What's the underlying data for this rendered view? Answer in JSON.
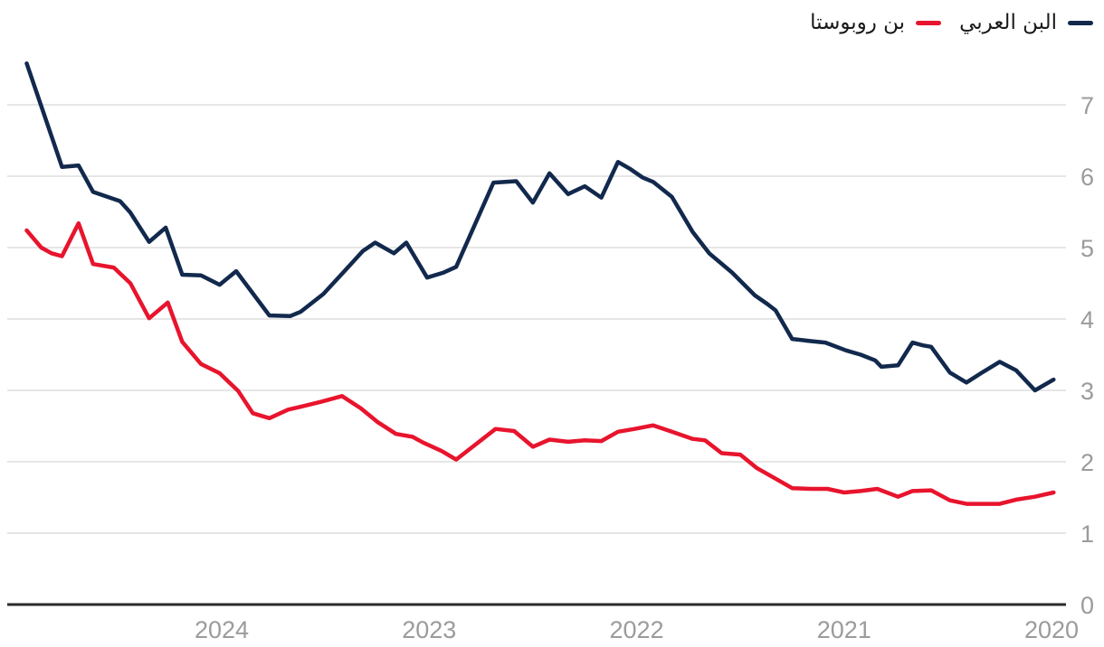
{
  "legend": {
    "items": [
      {
        "label": "البن العربي"
      },
      {
        "label": "بن روبوستا"
      }
    ]
  },
  "colors": {
    "background": "#ffffff",
    "gridline": "#e6e6e6",
    "axis_line": "#2a2a2a",
    "tick_label": "#9b9b9b",
    "legend_text": "#1a1a1a",
    "arabica": "#12294d",
    "robusta": "#e8142d"
  },
  "chart_data": {
    "type": "line",
    "rtl": true,
    "grid": "horizontal",
    "legend_position": "top-right",
    "x_axis": {
      "ticks": [
        2024,
        2023,
        2022,
        2021,
        2020
      ],
      "direction": "reversed",
      "range": [
        2025.02,
        2019.95
      ]
    },
    "y_axis": {
      "ticks": [
        0,
        1,
        2,
        3,
        4,
        5,
        6,
        7
      ],
      "range": [
        0,
        7.7
      ],
      "side": "right"
    },
    "series": [
      {
        "id": "arabica",
        "name": "البن العربي",
        "color": "#12294d",
        "points": [
          [
            2024.94,
            7.58
          ],
          [
            2024.86,
            6.9
          ],
          [
            2024.77,
            6.13
          ],
          [
            2024.69,
            6.15
          ],
          [
            2024.62,
            5.78
          ],
          [
            2024.55,
            5.71
          ],
          [
            2024.49,
            5.65
          ],
          [
            2024.44,
            5.49
          ],
          [
            2024.35,
            5.08
          ],
          [
            2024.27,
            5.28
          ],
          [
            2024.19,
            4.62
          ],
          [
            2024.1,
            4.61
          ],
          [
            2024.01,
            4.48
          ],
          [
            2023.93,
            4.67
          ],
          [
            2023.77,
            4.05
          ],
          [
            2023.67,
            4.04
          ],
          [
            2023.62,
            4.1
          ],
          [
            2023.51,
            4.35
          ],
          [
            2023.38,
            4.76
          ],
          [
            2023.32,
            4.95
          ],
          [
            2023.26,
            5.07
          ],
          [
            2023.17,
            4.92
          ],
          [
            2023.11,
            5.07
          ],
          [
            2023.01,
            4.58
          ],
          [
            2022.93,
            4.65
          ],
          [
            2022.87,
            4.73
          ],
          [
            2022.69,
            5.91
          ],
          [
            2022.58,
            5.93
          ],
          [
            2022.5,
            5.63
          ],
          [
            2022.42,
            6.04
          ],
          [
            2022.33,
            5.75
          ],
          [
            2022.25,
            5.86
          ],
          [
            2022.17,
            5.7
          ],
          [
            2022.09,
            6.2
          ],
          [
            2022.03,
            6.1
          ],
          [
            2021.97,
            5.98
          ],
          [
            2021.92,
            5.92
          ],
          [
            2021.83,
            5.71
          ],
          [
            2021.73,
            5.22
          ],
          [
            2021.65,
            4.92
          ],
          [
            2021.54,
            4.65
          ],
          [
            2021.43,
            4.33
          ],
          [
            2021.37,
            4.21
          ],
          [
            2021.33,
            4.12
          ],
          [
            2021.25,
            3.72
          ],
          [
            2021.16,
            3.69
          ],
          [
            2021.09,
            3.67
          ],
          [
            2020.99,
            3.56
          ],
          [
            2020.92,
            3.5
          ],
          [
            2020.85,
            3.42
          ],
          [
            2020.82,
            3.33
          ],
          [
            2020.74,
            3.35
          ],
          [
            2020.67,
            3.67
          ],
          [
            2020.62,
            3.63
          ],
          [
            2020.58,
            3.61
          ],
          [
            2020.49,
            3.25
          ],
          [
            2020.41,
            3.11
          ],
          [
            2020.34,
            3.24
          ],
          [
            2020.25,
            3.4
          ],
          [
            2020.17,
            3.28
          ],
          [
            2020.08,
            3.0
          ],
          [
            2019.99,
            3.15
          ]
        ]
      },
      {
        "id": "robusta",
        "name": "بن روبوستا",
        "color": "#e8142d",
        "points": [
          [
            2024.94,
            5.24
          ],
          [
            2024.87,
            5.0
          ],
          [
            2024.82,
            4.92
          ],
          [
            2024.77,
            4.88
          ],
          [
            2024.69,
            5.34
          ],
          [
            2024.62,
            4.77
          ],
          [
            2024.52,
            4.72
          ],
          [
            2024.44,
            4.5
          ],
          [
            2024.35,
            4.01
          ],
          [
            2024.26,
            4.23
          ],
          [
            2024.19,
            3.68
          ],
          [
            2024.1,
            3.37
          ],
          [
            2024.01,
            3.24
          ],
          [
            2023.92,
            2.99
          ],
          [
            2023.85,
            2.68
          ],
          [
            2023.77,
            2.61
          ],
          [
            2023.68,
            2.73
          ],
          [
            2023.62,
            2.77
          ],
          [
            2023.52,
            2.84
          ],
          [
            2023.42,
            2.92
          ],
          [
            2023.33,
            2.75
          ],
          [
            2023.25,
            2.56
          ],
          [
            2023.16,
            2.39
          ],
          [
            2023.08,
            2.35
          ],
          [
            2023.03,
            2.27
          ],
          [
            2022.94,
            2.15
          ],
          [
            2022.87,
            2.03
          ],
          [
            2022.68,
            2.46
          ],
          [
            2022.59,
            2.43
          ],
          [
            2022.5,
            2.21
          ],
          [
            2022.42,
            2.31
          ],
          [
            2022.33,
            2.28
          ],
          [
            2022.25,
            2.3
          ],
          [
            2022.17,
            2.29
          ],
          [
            2022.09,
            2.42
          ],
          [
            2022.01,
            2.46
          ],
          [
            2021.92,
            2.51
          ],
          [
            2021.83,
            2.42
          ],
          [
            2021.73,
            2.32
          ],
          [
            2021.67,
            2.3
          ],
          [
            2021.59,
            2.12
          ],
          [
            2021.5,
            2.1
          ],
          [
            2021.42,
            1.91
          ],
          [
            2021.34,
            1.78
          ],
          [
            2021.25,
            1.63
          ],
          [
            2021.16,
            1.62
          ],
          [
            2021.08,
            1.62
          ],
          [
            2021.0,
            1.57
          ],
          [
            2020.92,
            1.59
          ],
          [
            2020.84,
            1.62
          ],
          [
            2020.74,
            1.51
          ],
          [
            2020.67,
            1.59
          ],
          [
            2020.58,
            1.6
          ],
          [
            2020.49,
            1.46
          ],
          [
            2020.41,
            1.41
          ],
          [
            2020.33,
            1.41
          ],
          [
            2020.25,
            1.41
          ],
          [
            2020.17,
            1.47
          ],
          [
            2020.08,
            1.51
          ],
          [
            2019.99,
            1.57
          ]
        ]
      }
    ]
  }
}
